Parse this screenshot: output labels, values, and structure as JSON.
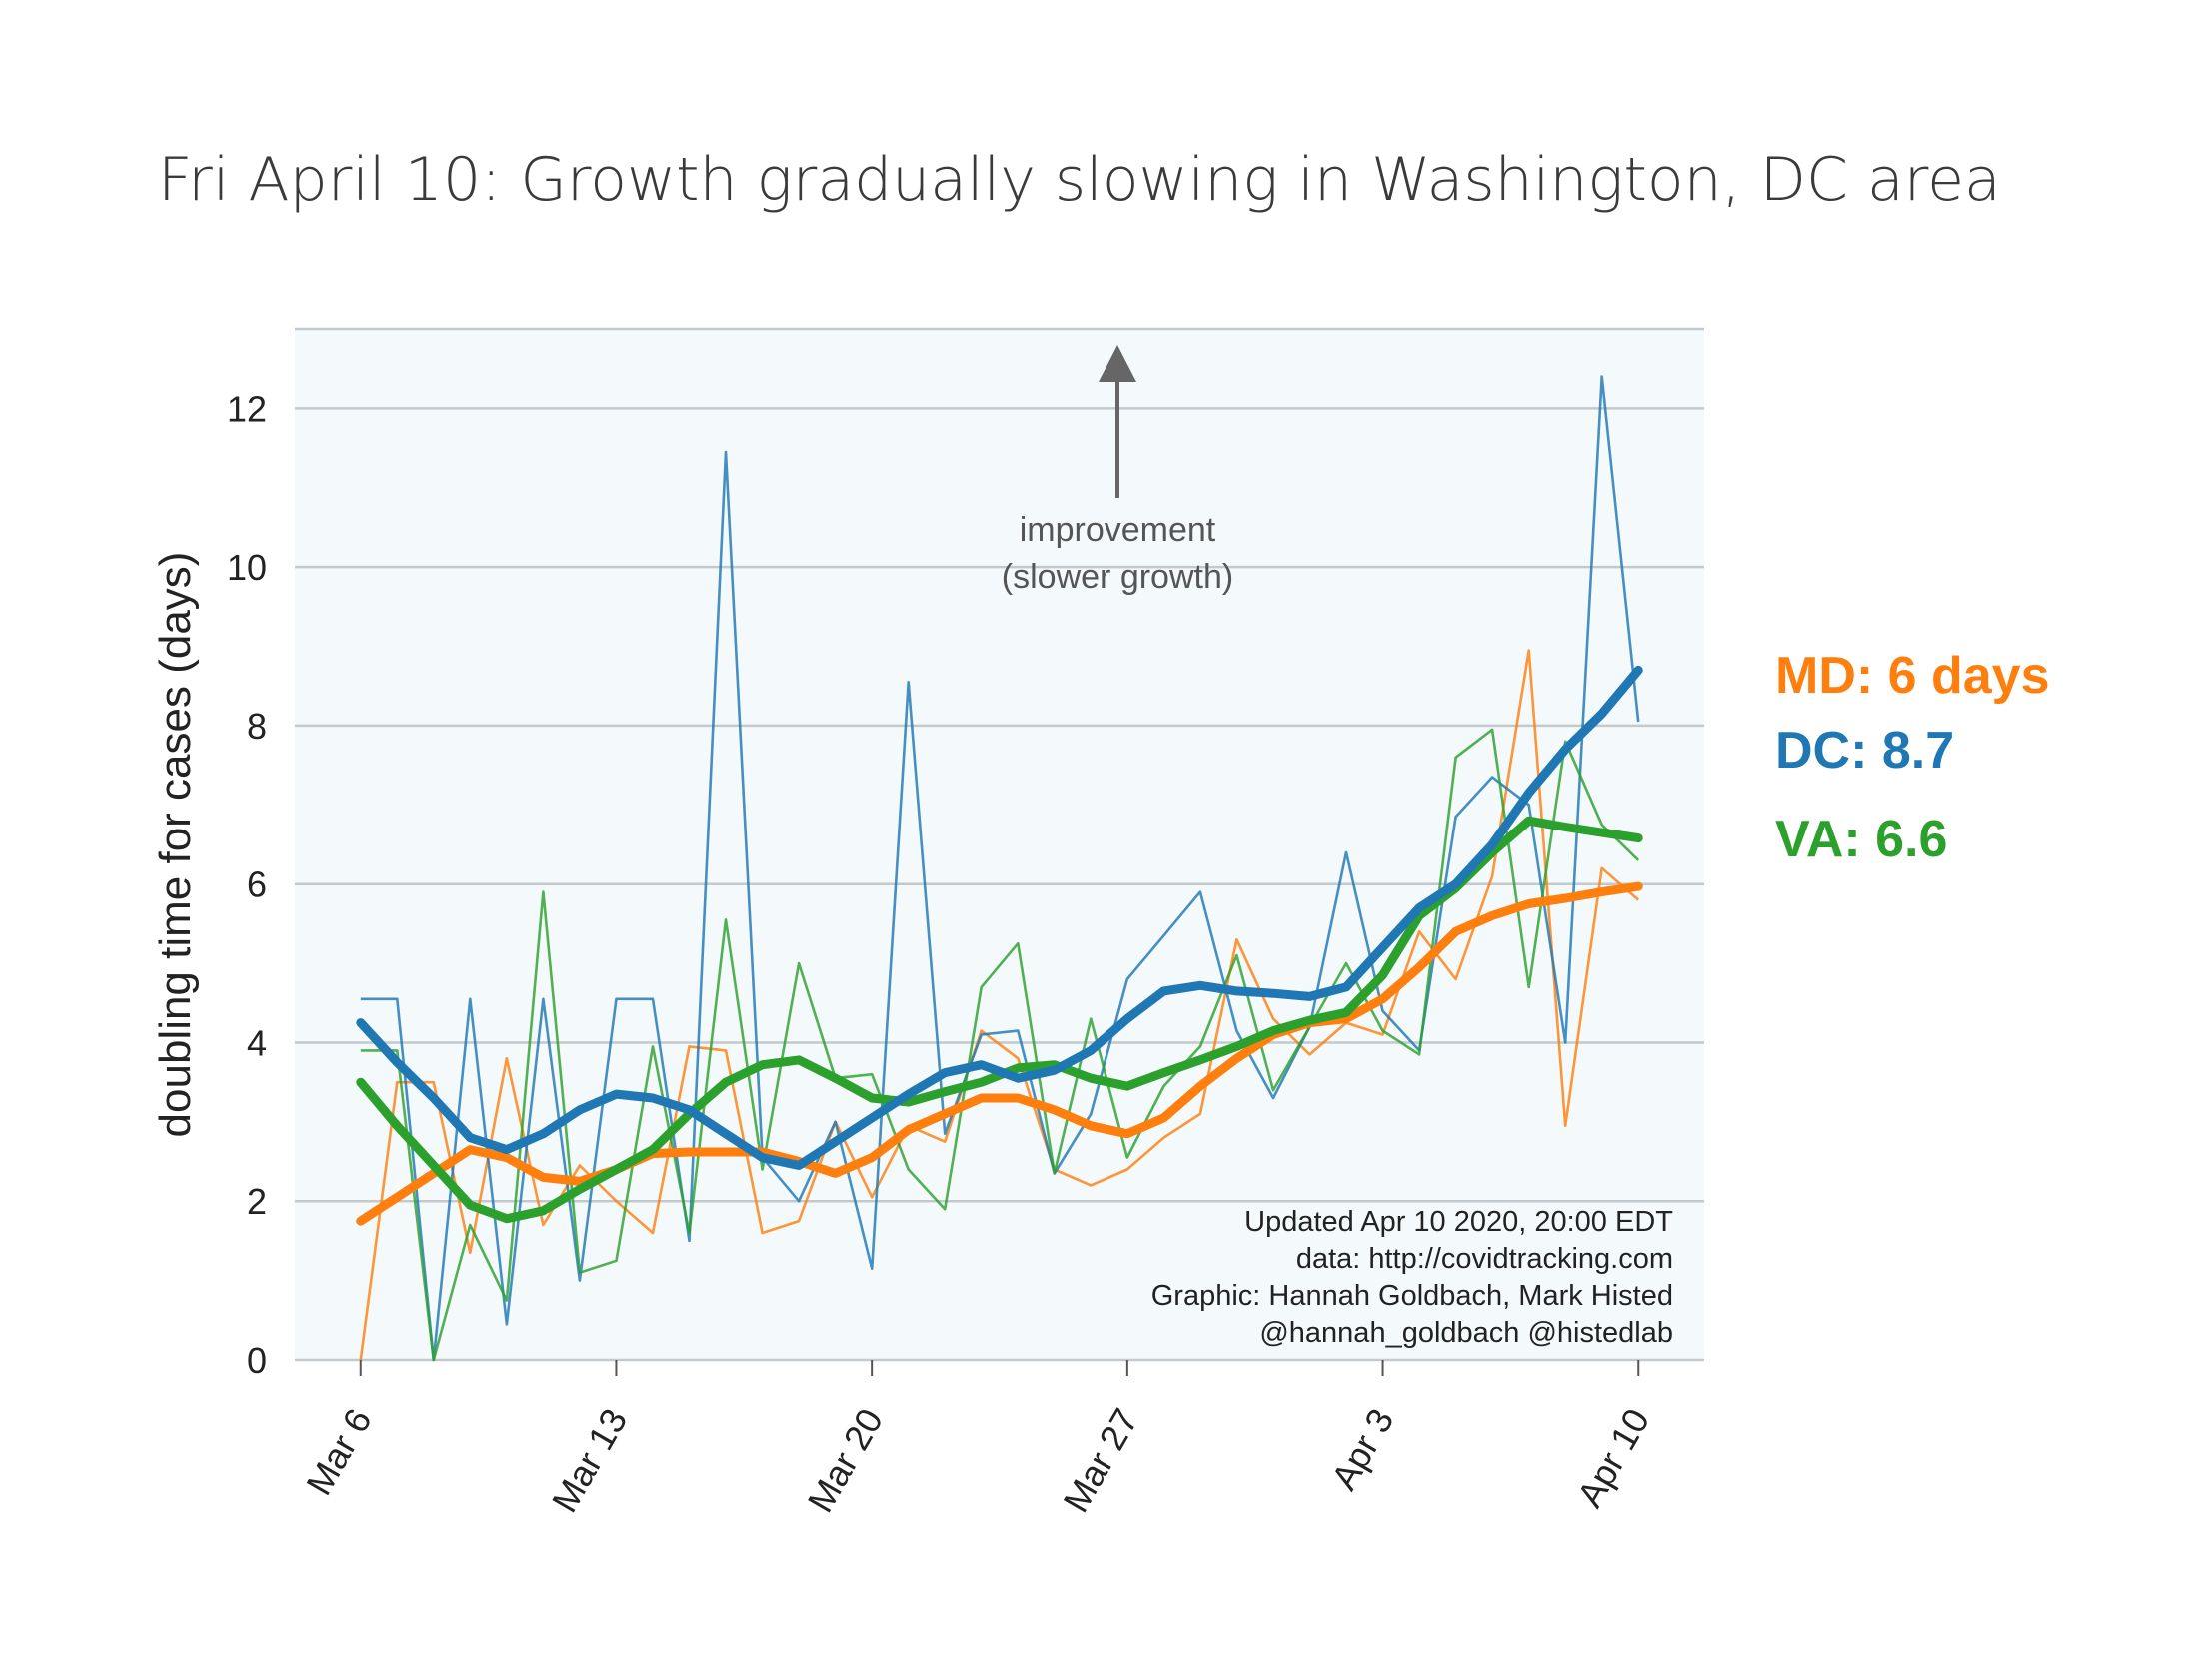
{
  "chart_data": {
    "type": "line",
    "title": "Fri April 10: Growth gradually slowing in Washington, DC area",
    "xlabel": "",
    "ylabel": "doubling time for cases (days)",
    "x_tick_labels": [
      "Mar 6",
      "Mar 13",
      "Mar 20",
      "Mar 27",
      "Apr 3",
      "Apr 10"
    ],
    "x_tick_days": [
      0,
      7,
      14,
      21,
      28,
      35
    ],
    "x_range_days": [
      -1.8,
      36.8
    ],
    "y_ticks": [
      0,
      2,
      4,
      6,
      8,
      10,
      12
    ],
    "y_tick_labels": [
      "0",
      "2",
      "4",
      "6",
      "8",
      "10",
      "12"
    ],
    "ylim": [
      0,
      13
    ],
    "grid": "horizontal",
    "background": "#f4f9fb",
    "colors": {
      "MD": "#ff7f0e",
      "DC": "#1f77b4",
      "VA": "#2ca02c",
      "grid": "#c4c9ce",
      "arrow": "#666666"
    },
    "series": [
      {
        "name": "MD",
        "color": "#ff7f0e",
        "daily": [
          [
            0,
            0.0
          ],
          [
            1,
            3.5
          ],
          [
            2,
            3.5
          ],
          [
            3,
            1.35
          ],
          [
            4,
            3.8
          ],
          [
            5,
            1.7
          ],
          [
            6,
            2.45
          ],
          [
            7,
            2.0
          ],
          [
            8,
            1.6
          ],
          [
            9,
            3.95
          ],
          [
            10,
            3.9
          ],
          [
            11,
            1.6
          ],
          [
            12,
            1.75
          ],
          [
            13,
            3.0
          ],
          [
            14,
            2.05
          ],
          [
            15,
            2.95
          ],
          [
            16,
            2.75
          ],
          [
            17,
            4.15
          ],
          [
            18,
            3.8
          ],
          [
            19,
            2.4
          ],
          [
            20,
            2.2
          ],
          [
            21,
            2.4
          ],
          [
            22,
            2.8
          ],
          [
            23,
            3.1
          ],
          [
            24,
            5.3
          ],
          [
            25,
            4.3
          ],
          [
            26,
            3.85
          ],
          [
            27,
            4.25
          ],
          [
            28,
            4.1
          ],
          [
            29,
            5.4
          ],
          [
            30,
            4.8
          ],
          [
            31,
            6.1
          ],
          [
            32,
            8.95
          ],
          [
            33,
            2.95
          ],
          [
            34,
            6.2
          ],
          [
            35,
            5.8
          ]
        ],
        "smoothed": [
          [
            0,
            1.75
          ],
          [
            1,
            2.05
          ],
          [
            2,
            2.35
          ],
          [
            3,
            2.65
          ],
          [
            4,
            2.55
          ],
          [
            5,
            2.3
          ],
          [
            6,
            2.25
          ],
          [
            7,
            2.4
          ],
          [
            8,
            2.6
          ],
          [
            9,
            2.62
          ],
          [
            10,
            2.62
          ],
          [
            11,
            2.62
          ],
          [
            12,
            2.5
          ],
          [
            13,
            2.35
          ],
          [
            14,
            2.55
          ],
          [
            15,
            2.9
          ],
          [
            16,
            3.1
          ],
          [
            17,
            3.3
          ],
          [
            18,
            3.3
          ],
          [
            19,
            3.15
          ],
          [
            20,
            2.95
          ],
          [
            21,
            2.85
          ],
          [
            22,
            3.05
          ],
          [
            23,
            3.45
          ],
          [
            24,
            3.8
          ],
          [
            25,
            4.1
          ],
          [
            26,
            4.25
          ],
          [
            27,
            4.3
          ],
          [
            28,
            4.55
          ],
          [
            29,
            4.95
          ],
          [
            30,
            5.4
          ],
          [
            31,
            5.6
          ],
          [
            32,
            5.75
          ],
          [
            33,
            5.82
          ],
          [
            34,
            5.9
          ],
          [
            35,
            5.97
          ]
        ],
        "legend_label": "MD: 6 days"
      },
      {
        "name": "DC",
        "color": "#1f77b4",
        "daily": [
          [
            0,
            4.55
          ],
          [
            1,
            4.55
          ],
          [
            2,
            0.0
          ],
          [
            3,
            4.55
          ],
          [
            4,
            0.45
          ],
          [
            5,
            4.55
          ],
          [
            6,
            1.0
          ],
          [
            7,
            4.55
          ],
          [
            8,
            4.55
          ],
          [
            9,
            1.5
          ],
          [
            10,
            11.45
          ],
          [
            11,
            2.55
          ],
          [
            12,
            2.0
          ],
          [
            13,
            3.0
          ],
          [
            14,
            1.15
          ],
          [
            15,
            8.55
          ],
          [
            16,
            2.85
          ],
          [
            17,
            4.1
          ],
          [
            18,
            4.15
          ],
          [
            19,
            2.35
          ],
          [
            20,
            3.1
          ],
          [
            21,
            4.8
          ],
          [
            22,
            5.35
          ],
          [
            23,
            5.9
          ],
          [
            24,
            4.15
          ],
          [
            25,
            3.3
          ],
          [
            26,
            4.2
          ],
          [
            27,
            6.4
          ],
          [
            28,
            4.4
          ],
          [
            29,
            3.9
          ],
          [
            30,
            6.85
          ],
          [
            31,
            7.35
          ],
          [
            32,
            7.0
          ],
          [
            33,
            4.0
          ],
          [
            34,
            12.4
          ],
          [
            35,
            8.05
          ]
        ],
        "smoothed": [
          [
            0,
            4.25
          ],
          [
            1,
            3.75
          ],
          [
            2,
            3.3
          ],
          [
            3,
            2.8
          ],
          [
            4,
            2.65
          ],
          [
            5,
            2.85
          ],
          [
            6,
            3.15
          ],
          [
            7,
            3.35
          ],
          [
            8,
            3.3
          ],
          [
            9,
            3.15
          ],
          [
            10,
            2.85
          ],
          [
            11,
            2.55
          ],
          [
            12,
            2.45
          ],
          [
            13,
            2.75
          ],
          [
            14,
            3.05
          ],
          [
            15,
            3.35
          ],
          [
            16,
            3.62
          ],
          [
            17,
            3.72
          ],
          [
            18,
            3.55
          ],
          [
            19,
            3.65
          ],
          [
            20,
            3.9
          ],
          [
            21,
            4.3
          ],
          [
            22,
            4.65
          ],
          [
            23,
            4.72
          ],
          [
            24,
            4.65
          ],
          [
            25,
            4.62
          ],
          [
            26,
            4.58
          ],
          [
            27,
            4.7
          ],
          [
            28,
            5.2
          ],
          [
            29,
            5.7
          ],
          [
            30,
            6.0
          ],
          [
            31,
            6.5
          ],
          [
            32,
            7.15
          ],
          [
            33,
            7.7
          ],
          [
            34,
            8.15
          ],
          [
            35,
            8.7
          ]
        ],
        "legend_label": "DC: 8.7"
      },
      {
        "name": "VA",
        "color": "#2ca02c",
        "daily": [
          [
            0,
            3.9
          ],
          [
            1,
            3.9
          ],
          [
            2,
            0.0
          ],
          [
            3,
            1.7
          ],
          [
            4,
            0.75
          ],
          [
            5,
            5.9
          ],
          [
            6,
            1.1
          ],
          [
            7,
            1.25
          ],
          [
            8,
            3.95
          ],
          [
            9,
            1.6
          ],
          [
            10,
            5.55
          ],
          [
            11,
            2.4
          ],
          [
            12,
            5.0
          ],
          [
            13,
            3.55
          ],
          [
            14,
            3.6
          ],
          [
            15,
            2.4
          ],
          [
            16,
            1.9
          ],
          [
            17,
            4.7
          ],
          [
            18,
            5.25
          ],
          [
            19,
            2.35
          ],
          [
            20,
            4.3
          ],
          [
            21,
            2.55
          ],
          [
            22,
            3.45
          ],
          [
            23,
            3.95
          ],
          [
            24,
            5.1
          ],
          [
            25,
            3.4
          ],
          [
            26,
            4.2
          ],
          [
            27,
            5.0
          ],
          [
            28,
            4.15
          ],
          [
            29,
            3.85
          ],
          [
            30,
            7.6
          ],
          [
            31,
            7.95
          ],
          [
            32,
            4.7
          ],
          [
            33,
            7.8
          ],
          [
            34,
            6.75
          ],
          [
            35,
            6.3
          ]
        ],
        "smoothed": [
          [
            0,
            3.5
          ],
          [
            1,
            2.95
          ],
          [
            2,
            2.45
          ],
          [
            3,
            1.95
          ],
          [
            4,
            1.78
          ],
          [
            5,
            1.88
          ],
          [
            6,
            2.15
          ],
          [
            7,
            2.4
          ],
          [
            8,
            2.65
          ],
          [
            9,
            3.1
          ],
          [
            10,
            3.5
          ],
          [
            11,
            3.72
          ],
          [
            12,
            3.78
          ],
          [
            13,
            3.55
          ],
          [
            14,
            3.3
          ],
          [
            15,
            3.25
          ],
          [
            16,
            3.38
          ],
          [
            17,
            3.5
          ],
          [
            18,
            3.68
          ],
          [
            19,
            3.72
          ],
          [
            20,
            3.55
          ],
          [
            21,
            3.45
          ],
          [
            22,
            3.62
          ],
          [
            23,
            3.78
          ],
          [
            24,
            3.95
          ],
          [
            25,
            4.15
          ],
          [
            26,
            4.28
          ],
          [
            27,
            4.38
          ],
          [
            28,
            4.85
          ],
          [
            29,
            5.6
          ],
          [
            30,
            5.95
          ],
          [
            31,
            6.4
          ],
          [
            32,
            6.8
          ],
          [
            33,
            6.72
          ],
          [
            34,
            6.65
          ],
          [
            35,
            6.58
          ]
        ],
        "legend_label": "VA: 6.6"
      }
    ],
    "annotation": {
      "line1": "improvement",
      "line2": "(slower growth)"
    },
    "credits": [
      "Updated Apr 10 2020, 20:00 EDT",
      "data: http://covidtracking.com",
      "Graphic: Hannah Goldbach, Mark Histed",
      "@hannah_goldbach @histedlab"
    ],
    "legend_placement": "right, outside plot"
  }
}
